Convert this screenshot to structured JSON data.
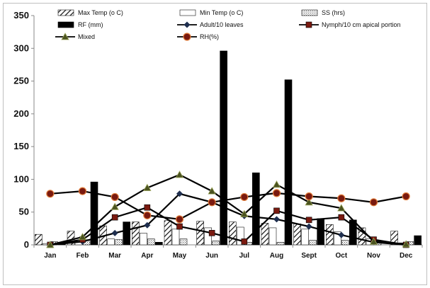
{
  "chart_data": {
    "type": "bar+line",
    "categories": [
      "Jan",
      "Feb",
      "Mar",
      "Apr",
      "May",
      "Jun",
      "Jul",
      "Aug",
      "Sept",
      "Oct",
      "Nov",
      "Dec"
    ],
    "ylim": [
      0,
      350
    ],
    "yticks": [
      0,
      50,
      100,
      150,
      200,
      250,
      300,
      350
    ],
    "grid": false,
    "legend_position": "top",
    "bar_series": [
      {
        "name": "Max Temp (o C)",
        "pattern": "diagonal",
        "values": [
          16,
          21,
          29,
          35,
          37,
          36,
          35,
          33,
          32,
          31,
          26,
          21
        ]
      },
      {
        "name": "Min Temp (o C)",
        "pattern": "white",
        "values": [
          2,
          5,
          9,
          18,
          24,
          26,
          27,
          26,
          24,
          20,
          9,
          3
        ]
      },
      {
        "name": "SS (hrs)",
        "pattern": "crosshatch",
        "values": [
          5,
          8,
          8,
          9,
          9,
          6,
          4,
          4,
          7,
          7,
          6,
          5
        ]
      },
      {
        "name": "RF (mm)",
        "pattern": "solid",
        "values": [
          3,
          96,
          35,
          4,
          0,
          296,
          110,
          252,
          40,
          38,
          0,
          14
        ]
      }
    ],
    "line_series": [
      {
        "name": "Adult/10 leaves",
        "color": "#1f2f4f",
        "marker": "diamond",
        "values": [
          0,
          5,
          18,
          30,
          78,
          65,
          44,
          39,
          28,
          15,
          4,
          0
        ]
      },
      {
        "name": "Nymph/10 cm apical portion",
        "color": "#7a1a10",
        "marker": "square",
        "values": [
          0,
          8,
          42,
          57,
          28,
          18,
          5,
          52,
          38,
          42,
          8,
          0
        ]
      },
      {
        "name": "Mixed",
        "color": "#4b5320",
        "marker": "triangle",
        "values": [
          0,
          12,
          58,
          87,
          107,
          82,
          47,
          92,
          65,
          56,
          5,
          1
        ]
      },
      {
        "name": "RH(%)",
        "color": "#7a1a10",
        "marker": "circle",
        "values": [
          78,
          82,
          73,
          45,
          39,
          65,
          73,
          79,
          74,
          71,
          65,
          74
        ]
      }
    ]
  }
}
